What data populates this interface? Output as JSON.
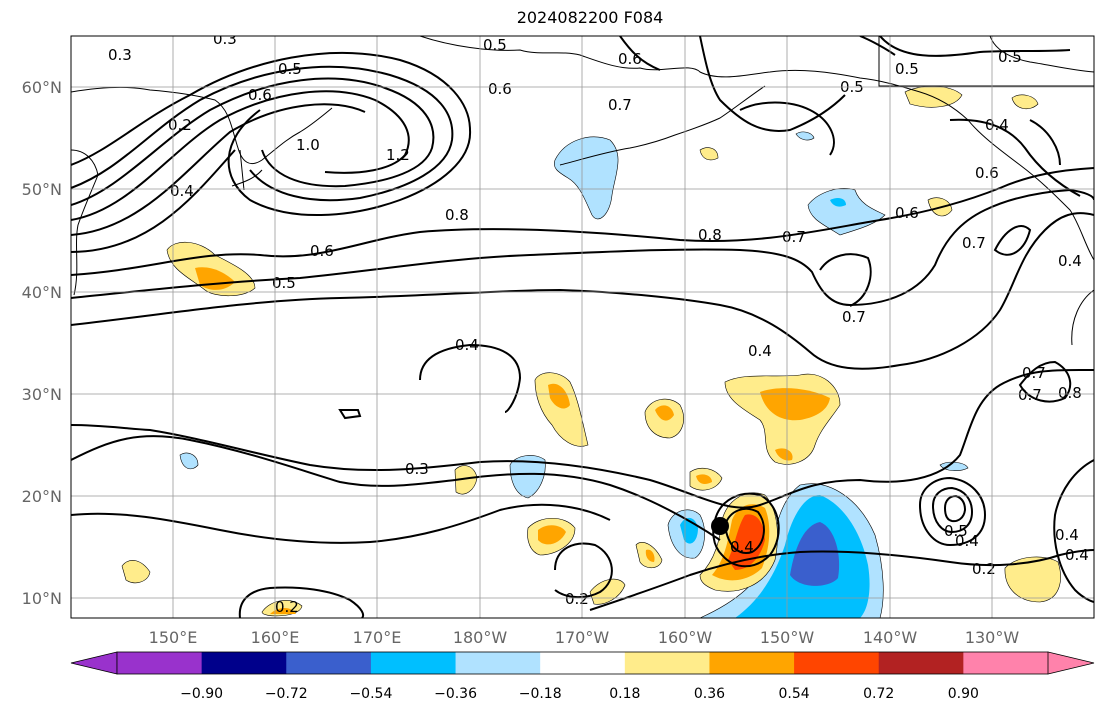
{
  "title": "2024082200 F084",
  "map": {
    "lon_labels": [
      "150°E",
      "160°E",
      "170°E",
      "180°W",
      "170°W",
      "160°W",
      "150°W",
      "140°W",
      "130°W"
    ],
    "lat_labels": [
      "60°N",
      "50°N",
      "40°N",
      "30°N",
      "20°N",
      "10°N"
    ],
    "contour_labels": [
      "0.3",
      "0.3",
      "0.5",
      "0.5",
      "0.6",
      "0.6",
      "0.6",
      "0.7",
      "0.7",
      "0.5",
      "0.5",
      "0.5",
      "0.4",
      "0.6",
      "0.2",
      "1.0",
      "1.2",
      "0.4",
      "0.8",
      "0.8",
      "0.7",
      "0.6",
      "0.6",
      "0.5",
      "0.7",
      "0.7",
      "0.4",
      "0.4",
      "0.4",
      "0.3",
      "0.2",
      "0.4",
      "0.2",
      "0.5",
      "0.4",
      "0.4",
      "0.7",
      "0.8",
      "0.4",
      "0.2"
    ],
    "storm_marker": "tropical-cyclone-center"
  },
  "colorbar": {
    "tick_labels": [
      "−0.90",
      "−0.72",
      "−0.54",
      "−0.36",
      "−0.18",
      "0.18",
      "0.36",
      "0.54",
      "0.72",
      "0.90"
    ],
    "colors": [
      "#9932cc",
      "#00008b",
      "#3a5fcd",
      "#00bfff",
      "#b0e2ff",
      "#ffffff",
      "#ffec8b",
      "#ffa500",
      "#ff4500",
      "#b22222",
      "#ff82ab"
    ]
  }
}
